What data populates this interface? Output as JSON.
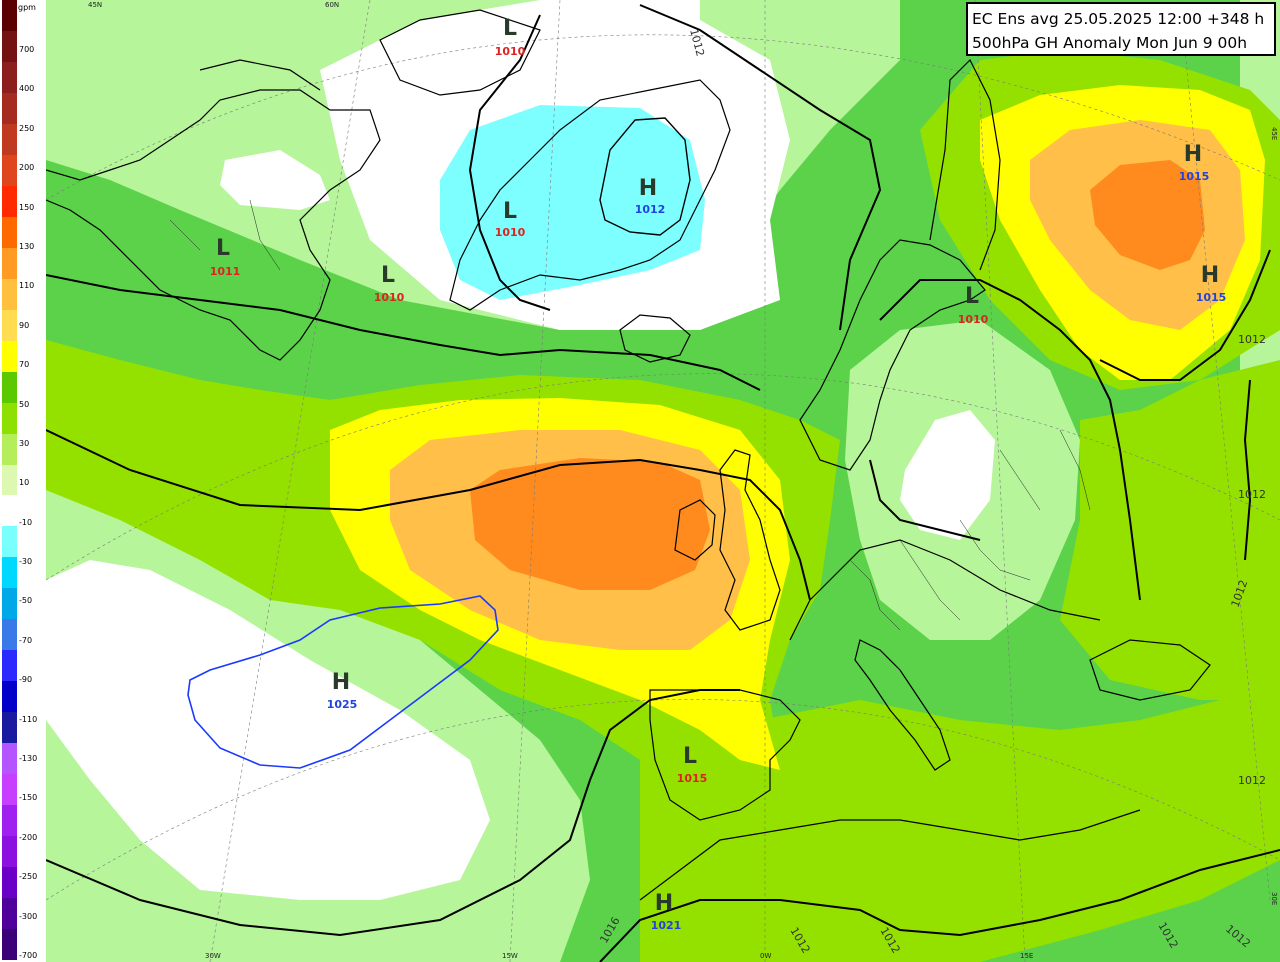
{
  "title": {
    "line1": "EC Ens avg 25.05.2025 12:00 +348 h",
    "line2": "500hPa GH Anomaly Mon Jun 9 00h"
  },
  "colorbar": {
    "unit": "gpm",
    "swatches": [
      "#5a0000",
      "#741212",
      "#8c1e1e",
      "#a52a20",
      "#c03a22",
      "#e0461e",
      "#ff2a00",
      "#ff6a00",
      "#ff9a22",
      "#ffc040",
      "#ffdc50",
      "#ffff00",
      "#5cc800",
      "#8ee000",
      "#b4ee5a",
      "#ddf8b0",
      "#ffffff",
      "#7affff",
      "#00d8ff",
      "#00a8e8",
      "#3a7ae8",
      "#2a2aff",
      "#0000c8",
      "#1a1aa0",
      "#b455ff",
      "#c840ff",
      "#a020f0",
      "#8c10e0",
      "#6a00c8",
      "#50009a",
      "#3c0078"
    ],
    "ticks": [
      "700",
      "400",
      "250",
      "200",
      "150",
      "130",
      "110",
      "90",
      "70",
      "50",
      "30",
      "10",
      "-10",
      "-30",
      "-50",
      "-70",
      "-90",
      "-110",
      "-130",
      "-150",
      "-200",
      "-250",
      "-300",
      "-700"
    ]
  },
  "map": {
    "pressure_centers": [
      {
        "type": "L",
        "value": "1010",
        "color": "#dd2222"
      },
      {
        "type": "L",
        "value": "1010",
        "color": "#dd2222"
      },
      {
        "type": "H",
        "value": "1012",
        "color": "#2244dd"
      },
      {
        "type": "L",
        "value": "1011",
        "color": "#dd2222"
      },
      {
        "type": "L",
        "value": "1010",
        "color": "#dd2222"
      },
      {
        "type": "L",
        "value": "1010",
        "color": "#dd2222"
      },
      {
        "type": "H",
        "value": "1015",
        "color": "#2244dd"
      },
      {
        "type": "H",
        "value": "1015",
        "color": "#2244dd"
      },
      {
        "type": "H",
        "value": "1025",
        "color": "#2244dd"
      },
      {
        "type": "L",
        "value": "1015",
        "color": "#dd2222"
      },
      {
        "type": "H",
        "value": "1021",
        "color": "#2244dd"
      }
    ],
    "isobar_labels": [
      "1012",
      "1012",
      "1012",
      "1012",
      "1012",
      "1016",
      "1012",
      "1012",
      "1012",
      "1012"
    ],
    "graticule_labels": [
      "45N",
      "60N",
      "30W",
      "15W",
      "0W",
      "15E",
      "30E",
      "45E"
    ]
  }
}
